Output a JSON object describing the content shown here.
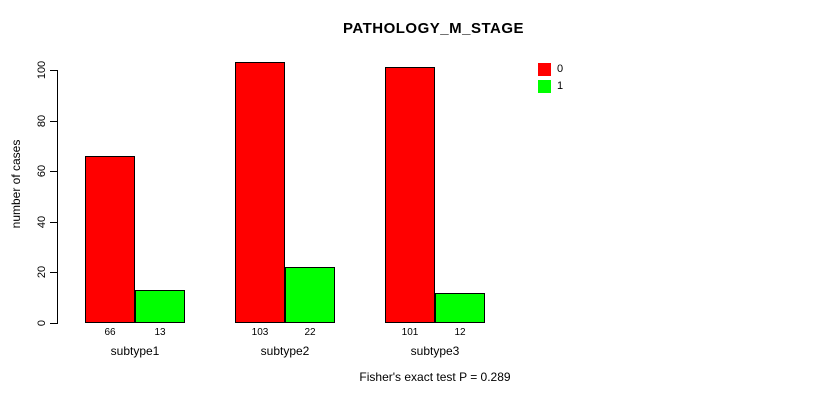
{
  "title": "PATHOLOGY_M_STAGE",
  "chart_data": {
    "type": "bar",
    "categories": [
      "subtype1",
      "subtype2",
      "subtype3"
    ],
    "series": [
      {
        "name": "0",
        "color": "#ff0000",
        "values": [
          66,
          103,
          101
        ]
      },
      {
        "name": "1",
        "color": "#00ff00",
        "values": [
          13,
          22,
          12
        ]
      }
    ],
    "title": "PATHOLOGY_M_STAGE",
    "xlabel": "",
    "ylabel": "number of cases",
    "yticks": [
      0,
      20,
      40,
      60,
      80,
      100
    ],
    "ylim": [
      0,
      103
    ],
    "bar_value_labels": true,
    "legend_position": "top-right",
    "grid": false
  },
  "footer": {
    "note": "Fisher's exact test P = 0.289"
  }
}
